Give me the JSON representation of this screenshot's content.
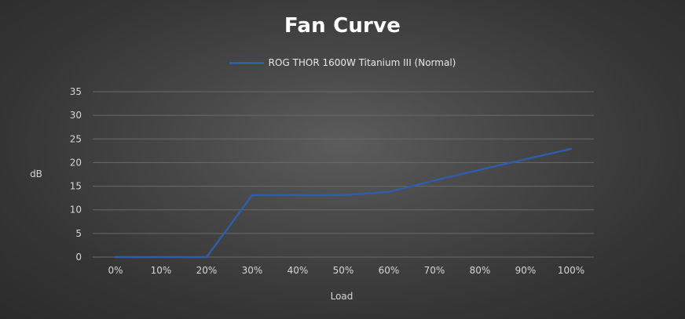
{
  "chart_data": {
    "type": "line",
    "title": "Fan Curve",
    "xlabel": "Load",
    "ylabel": "dB",
    "categories": [
      "0%",
      "10%",
      "20%",
      "30%",
      "40%",
      "50%",
      "60%",
      "70%",
      "80%",
      "90%",
      "100%"
    ],
    "series": [
      {
        "name": "ROG THOR 1600W Titanium III (Normal)",
        "values": [
          0,
          0,
          0,
          13.1,
          13.1,
          13.1,
          13.8,
          16.2,
          18.5,
          20.7,
          22.9
        ]
      }
    ],
    "ylim": [
      0,
      35
    ],
    "yticks": [
      "0",
      "5",
      "10",
      "15",
      "20",
      "25",
      "30",
      "35"
    ],
    "grid": true,
    "legend_position": "top-center",
    "colors": {
      "series": "#2f5da8",
      "grid": "#6a6a6a",
      "text": "#d6d6d6",
      "title": "#ffffff"
    }
  }
}
